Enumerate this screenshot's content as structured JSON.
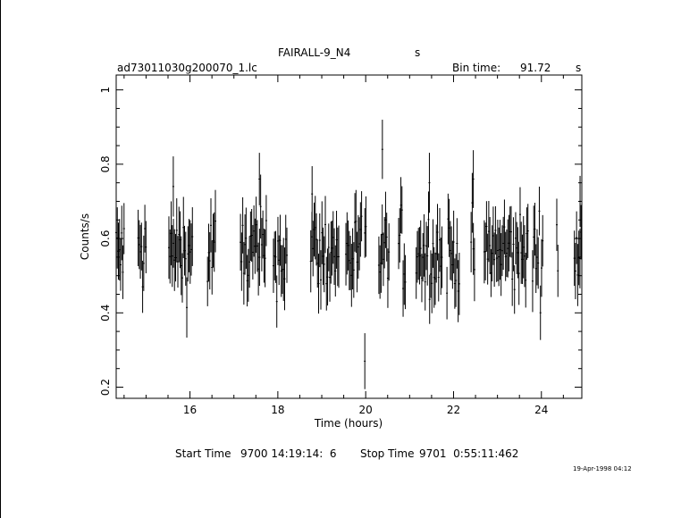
{
  "header": {
    "object_name": "FAIRALL-9_N4",
    "units_label": "s",
    "file_name": "ad73011030g200070_1.lc",
    "bin_time_label": "Bin time:",
    "bin_time_value": "91.72",
    "bin_time_unit": "s"
  },
  "footer": {
    "start_label": "Start Time",
    "start_value": "9700 14:19:14:  6",
    "stop_label": "Stop Time",
    "stop_value": "9701  0:55:11:462",
    "date_stamp": "19-Apr-1998 04:12"
  },
  "chart_data": {
    "type": "scatter",
    "style": "light curve with vertical error bars",
    "title": "FAIRALL-9_N4",
    "xlabel": "Time (hours)",
    "ylabel": "Counts/s",
    "xlim": [
      14.32,
      24.92
    ],
    "ylim": [
      0.17,
      1.04
    ],
    "x_ticks": [
      16,
      18,
      20,
      22,
      24
    ],
    "y_ticks": [
      0.2,
      0.4,
      0.6,
      0.8,
      1
    ],
    "grid": false,
    "legend": "none",
    "colors": {
      "data": "#000000",
      "frame": "#000000",
      "background": "#ffffff"
    },
    "series": [
      {
        "segments": [
          {
            "t0": 14.32,
            "t1": 14.5
          },
          {
            "t0": 14.82,
            "t1": 15.02
          },
          {
            "t0": 15.52,
            "t1": 16.08
          },
          {
            "t0": 16.4,
            "t1": 16.6
          },
          {
            "t0": 17.15,
            "t1": 17.75
          },
          {
            "t0": 17.9,
            "t1": 18.22
          },
          {
            "t0": 18.75,
            "t1": 19.4
          },
          {
            "t0": 19.55,
            "t1": 19.92
          },
          {
            "t0": 19.98,
            "t1": 20.02
          },
          {
            "t0": 20.3,
            "t1": 20.55
          },
          {
            "t0": 20.75,
            "t1": 20.92
          },
          {
            "t0": 21.15,
            "t1": 21.75
          },
          {
            "t0": 21.85,
            "t1": 22.15
          },
          {
            "t0": 22.4,
            "t1": 22.5
          },
          {
            "t0": 22.7,
            "t1": 23.7
          },
          {
            "t0": 23.8,
            "t1": 24.05
          },
          {
            "t0": 24.35,
            "t1": 24.4
          },
          {
            "t0": 24.75,
            "t1": 24.92
          }
        ],
        "bin_hours": 0.02548,
        "mean_rate": 0.56,
        "scatter_rate": 0.055,
        "error_half_width": 0.075,
        "notable_points": [
          {
            "x": 19.98,
            "y": 0.27
          },
          {
            "x": 20.38,
            "y": 0.84
          },
          {
            "x": 17.58,
            "y": 0.76
          },
          {
            "x": 15.62,
            "y": 0.74
          },
          {
            "x": 22.45,
            "y": 0.76
          },
          {
            "x": 21.45,
            "y": 0.75
          },
          {
            "x": 18.78,
            "y": 0.72
          },
          {
            "x": 24.88,
            "y": 0.7
          }
        ]
      }
    ]
  }
}
